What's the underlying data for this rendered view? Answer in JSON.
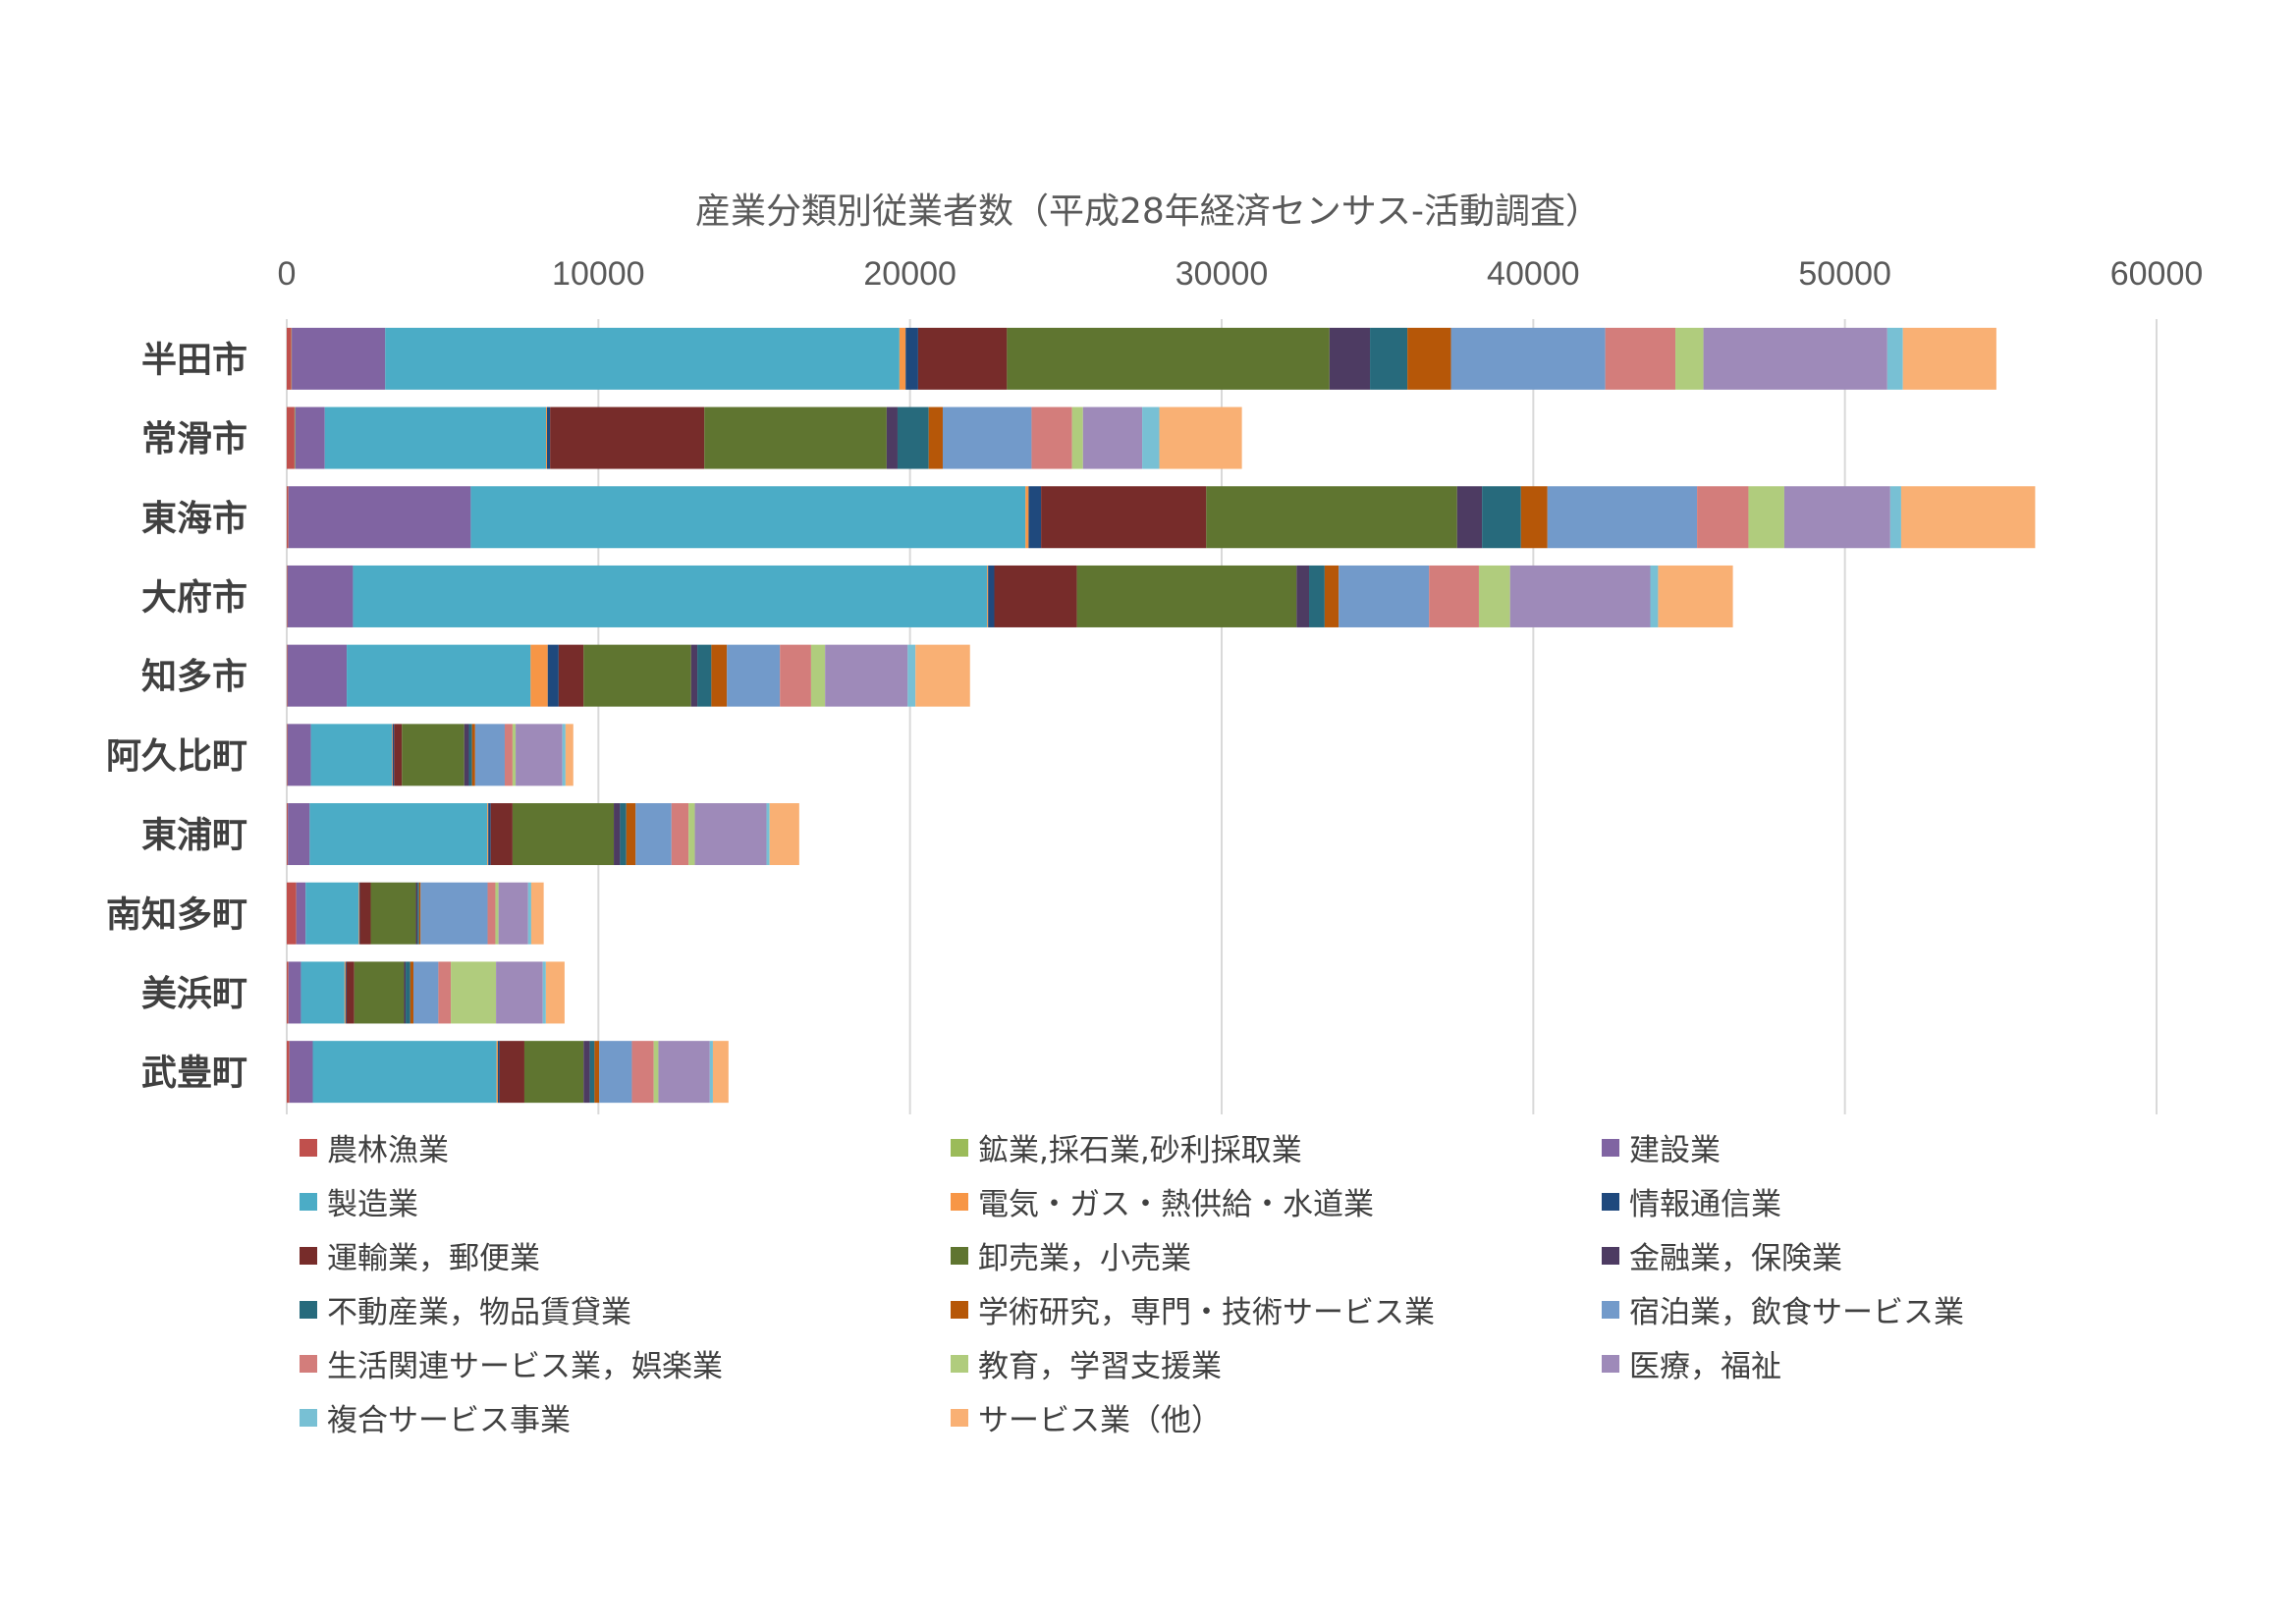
{
  "chart_data": {
    "type": "bar",
    "orientation": "horizontal",
    "stacked": true,
    "title": "産業分類別従業者数（平成28年経済センサス-活動調査）",
    "xlim": [
      0,
      60000
    ],
    "xticks": [
      "0",
      "10000",
      "20000",
      "30000",
      "40000",
      "50000",
      "60000"
    ],
    "x_axis_position": "top",
    "grid": true,
    "legend_position": "bottom",
    "categories": [
      "半田市",
      "常滑市",
      "東海市",
      "大府市",
      "知多市",
      "阿久比町",
      "東浦町",
      "南知多町",
      "美浜町",
      "武豊町"
    ],
    "series": [
      {
        "name": "農林漁業",
        "color": "#C0504D",
        "values": [
          150,
          250,
          50,
          20,
          20,
          20,
          30,
          300,
          50,
          80
        ]
      },
      {
        "name": "鉱業,採石業,砂利採取業",
        "color": "#9BBB59",
        "values": [
          10,
          20,
          5,
          5,
          5,
          5,
          5,
          5,
          5,
          5
        ]
      },
      {
        "name": "建設業",
        "color": "#8064A2",
        "values": [
          3000,
          950,
          5850,
          2100,
          1900,
          750,
          700,
          300,
          400,
          750
        ]
      },
      {
        "name": "製造業",
        "color": "#4BACC6",
        "values": [
          16500,
          7100,
          17800,
          20350,
          5900,
          2600,
          5700,
          1700,
          1400,
          5900
        ]
      },
      {
        "name": "電気・ガス・熱供給・水道業",
        "color": "#F79646",
        "values": [
          200,
          30,
          100,
          30,
          550,
          20,
          30,
          20,
          30,
          40
        ]
      },
      {
        "name": "情報通信業",
        "color": "#1F497D",
        "values": [
          400,
          100,
          400,
          200,
          350,
          50,
          80,
          20,
          30,
          50
        ]
      },
      {
        "name": "運輸業，郵便業",
        "color": "#772C2A",
        "values": [
          2850,
          4950,
          5300,
          2650,
          800,
          250,
          700,
          350,
          250,
          800
        ]
      },
      {
        "name": "卸売業，小売業",
        "color": "#5F7530",
        "values": [
          10350,
          5850,
          8050,
          7050,
          3450,
          2000,
          3250,
          1450,
          1600,
          1900
        ]
      },
      {
        "name": "金融業，保険業",
        "color": "#4D3B62",
        "values": [
          1300,
          350,
          800,
          400,
          200,
          150,
          200,
          50,
          50,
          200
        ]
      },
      {
        "name": "不動産業，物品賃貸業",
        "color": "#276A7C",
        "values": [
          1200,
          1000,
          1250,
          500,
          450,
          100,
          200,
          50,
          150,
          150
        ]
      },
      {
        "name": "学術研究，専門・技術サービス業",
        "color": "#B65708",
        "values": [
          1400,
          450,
          850,
          450,
          500,
          100,
          300,
          50,
          100,
          150
        ]
      },
      {
        "name": "宿泊業，飲食サービス業",
        "color": "#729ACA",
        "values": [
          4950,
          2850,
          4800,
          2900,
          1700,
          950,
          1150,
          2150,
          800,
          1050
        ]
      },
      {
        "name": "生活関連サービス業，娯楽業",
        "color": "#D37D7B",
        "values": [
          2250,
          1300,
          1650,
          1600,
          1000,
          250,
          550,
          250,
          400,
          700
        ]
      },
      {
        "name": "教育，学習支援業",
        "color": "#B0CC7D",
        "values": [
          900,
          350,
          1150,
          1000,
          450,
          100,
          200,
          100,
          1450,
          150
        ]
      },
      {
        "name": "医療，福祉",
        "color": "#9E8AB9",
        "values": [
          5900,
          1900,
          3400,
          4500,
          2650,
          1500,
          2300,
          950,
          1500,
          1650
        ]
      },
      {
        "name": "複合サービス事業",
        "color": "#78C0D4",
        "values": [
          500,
          550,
          350,
          250,
          250,
          100,
          100,
          100,
          100,
          100
        ]
      },
      {
        "name": "サービス業（他）",
        "color": "#F9B074",
        "values": [
          3000,
          2650,
          4300,
          2400,
          1750,
          250,
          950,
          400,
          600,
          500
        ]
      }
    ]
  }
}
